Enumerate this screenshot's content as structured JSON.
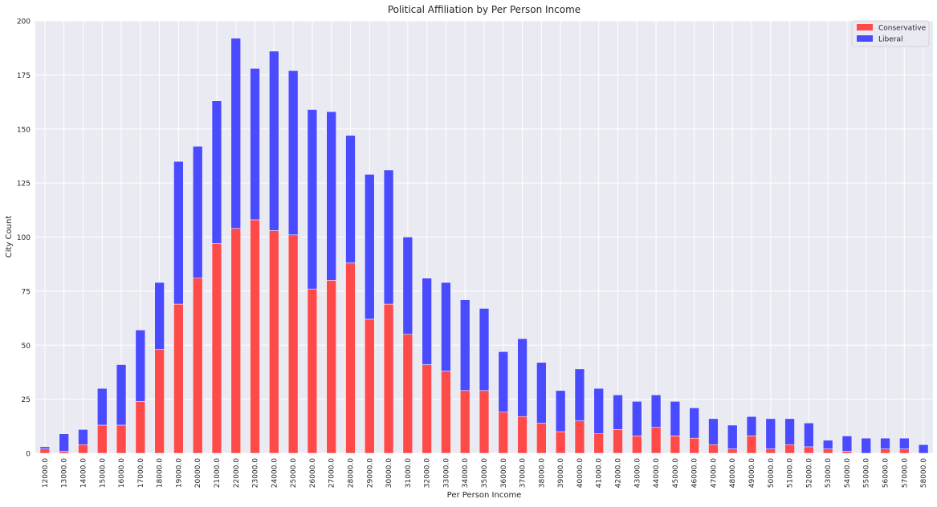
{
  "chart_data": {
    "type": "bar",
    "stacked": true,
    "title": "Political Affiliation by Per Person Income",
    "xlabel": "Per Person Income",
    "ylabel": "City Count",
    "ylim": [
      0,
      200
    ],
    "yticks": [
      "0",
      "25",
      "50",
      "75",
      "100",
      "125",
      "150",
      "175",
      "200"
    ],
    "grid": true,
    "legend_position": "top-right",
    "categories": [
      "12000.0",
      "13000.0",
      "14000.0",
      "15000.0",
      "16000.0",
      "17000.0",
      "18000.0",
      "19000.0",
      "20000.0",
      "21000.0",
      "22000.0",
      "23000.0",
      "24000.0",
      "25000.0",
      "26000.0",
      "27000.0",
      "28000.0",
      "29000.0",
      "30000.0",
      "31000.0",
      "32000.0",
      "33000.0",
      "34000.0",
      "35000.0",
      "36000.0",
      "37000.0",
      "38000.0",
      "39000.0",
      "40000.0",
      "41000.0",
      "42000.0",
      "43000.0",
      "44000.0",
      "45000.0",
      "46000.0",
      "47000.0",
      "48000.0",
      "49000.0",
      "50000.0",
      "51000.0",
      "52000.0",
      "53000.0",
      "54000.0",
      "55000.0",
      "56000.0",
      "57000.0",
      "58000.0"
    ],
    "series": [
      {
        "name": "Conservative",
        "color": "#ff4a4a",
        "values": [
          2,
          1,
          4,
          13,
          13,
          24,
          48,
          69,
          81,
          97,
          104,
          108,
          103,
          101,
          76,
          80,
          88,
          62,
          69,
          55,
          41,
          38,
          29,
          29,
          19,
          17,
          14,
          10,
          15,
          9,
          11,
          8,
          12,
          8,
          7,
          4,
          2,
          8,
          2,
          4,
          3,
          2,
          1,
          0,
          2,
          2,
          0
        ]
      },
      {
        "name": "Liberal",
        "color": "#4a4aff",
        "values": [
          1,
          8,
          7,
          17,
          28,
          33,
          31,
          66,
          61,
          66,
          88,
          70,
          83,
          76,
          83,
          78,
          59,
          67,
          62,
          45,
          40,
          41,
          42,
          38,
          28,
          36,
          28,
          19,
          24,
          21,
          16,
          16,
          15,
          16,
          14,
          12,
          11,
          9,
          14,
          12,
          11,
          4,
          7,
          7,
          5,
          5,
          4
        ]
      }
    ]
  }
}
